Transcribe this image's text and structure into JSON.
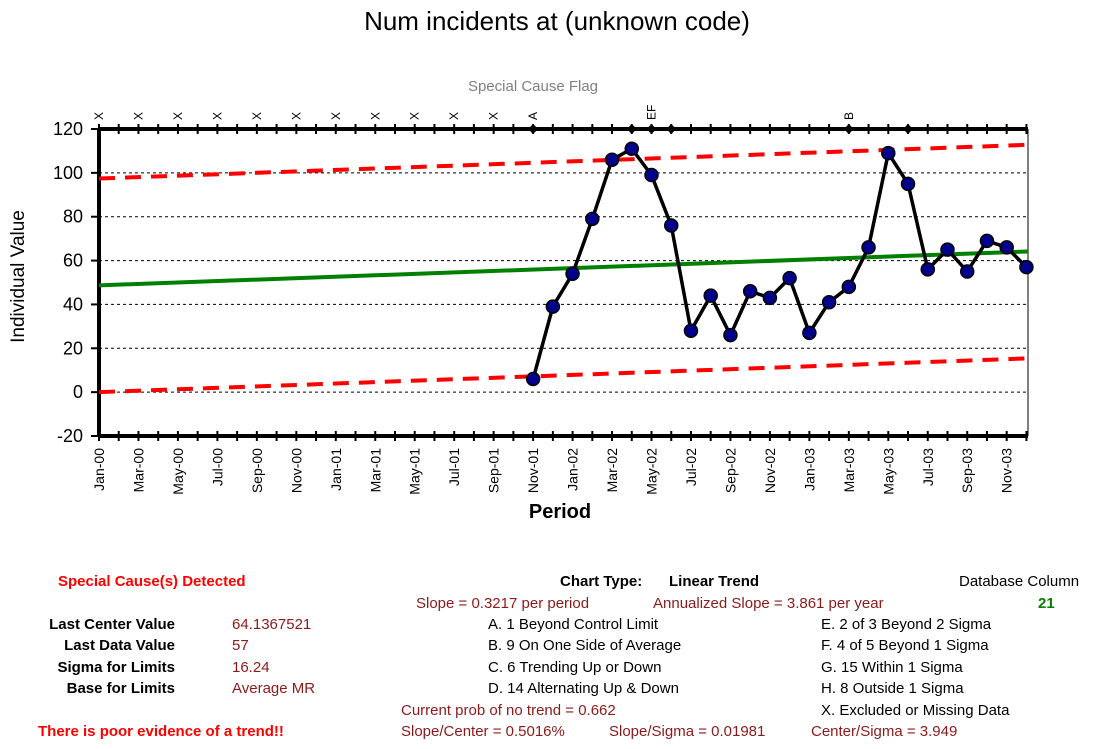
{
  "chart_data": {
    "type": "line",
    "title": "Num incidents at (unknown code)",
    "subtitle": "Special Cause Flag",
    "xlabel": "Period",
    "ylabel": "Individual Value",
    "ylim": [
      -20,
      120
    ],
    "yticks": [
      -20,
      0,
      20,
      40,
      60,
      80,
      100,
      120
    ],
    "grid": "horizontal dashed",
    "xtick_labels": [
      "Jan-00",
      "Mar-00",
      "May-00",
      "Jul-00",
      "Sep-00",
      "Nov-00",
      "Jan-01",
      "Mar-01",
      "May-01",
      "Jul-01",
      "Sep-01",
      "Nov-01",
      "Jan-02",
      "Mar-02",
      "May-02",
      "Jul-02",
      "Sep-02",
      "Nov-02",
      "Jan-03",
      "Mar-03",
      "May-03",
      "Jul-03",
      "Sep-03",
      "Nov-03"
    ],
    "n_periods": 48,
    "series": [
      {
        "start_index": 22,
        "values": [
          6,
          39,
          54,
          79,
          106,
          111,
          99,
          76,
          28,
          44,
          26,
          46,
          43,
          52,
          27,
          41,
          48,
          66,
          109,
          95,
          56,
          65,
          55,
          69,
          66,
          57
        ],
        "color": "#000000",
        "marker_color": "#00008b"
      }
    ],
    "center_line": {
      "start": 48.7,
      "end": 64.14,
      "color": "#008000"
    },
    "upper_limit": {
      "start": 97.4,
      "end": 112.8,
      "color": "#ff0000"
    },
    "lower_limit": {
      "start": 0.0,
      "end": 15.4,
      "color": "#ff0000"
    },
    "flags": [
      {
        "index": 0,
        "text": "X"
      },
      {
        "index": 2,
        "text": "X"
      },
      {
        "index": 4,
        "text": "X"
      },
      {
        "index": 6,
        "text": "X"
      },
      {
        "index": 8,
        "text": "X"
      },
      {
        "index": 10,
        "text": "X"
      },
      {
        "index": 12,
        "text": "X"
      },
      {
        "index": 14,
        "text": "X"
      },
      {
        "index": 16,
        "text": "X"
      },
      {
        "index": 18,
        "text": "X"
      },
      {
        "index": 20,
        "text": "X"
      },
      {
        "index": 22,
        "text": "A"
      },
      {
        "index": 28,
        "text": "EF"
      },
      {
        "index": 38,
        "text": "B"
      }
    ],
    "flag_diamonds": [
      22,
      27,
      28,
      29,
      38,
      41
    ]
  },
  "stats": {
    "special_cause": "Special Cause(s) Detected",
    "last_center_label": "Last Center Value",
    "last_center_value": "64.1367521",
    "last_data_label": "Last Data Value",
    "last_data_value": "57",
    "sigma_label": "Sigma for Limits",
    "sigma_value": "16.24",
    "base_label": "Base for Limits",
    "base_value": "Average MR",
    "trend_warning": "There is poor evidence of a trend!!"
  },
  "rules": {
    "chart_type_label": "Chart Type:",
    "chart_type_value": "Linear Trend",
    "slope": "Slope = 0.3217 per period",
    "annualized_slope": "Annualized Slope = 3.861 per year",
    "a": "A.  1 Beyond Control Limit",
    "b": "B.  9 On One Side of Average",
    "c": "C.  6 Trending Up or Down",
    "d": "D.  14 Alternating  Up & Down",
    "e": "E.  2 of 3 Beyond 2 Sigma",
    "f": "F.  4 of 5 Beyond 1 Sigma",
    "g": "G.  15 Within 1 Sigma",
    "h": "H.  8 Outside 1 Sigma",
    "x": "X.  Excluded or Missing Data",
    "prob_no_trend": "Current prob of no trend = 0.662",
    "slope_center": "Slope/Center = 0.5016%",
    "slope_sigma": "Slope/Sigma = 0.01981",
    "center_sigma": "Center/Sigma = 3.949"
  },
  "database": {
    "label": "Database Column",
    "value": "21"
  }
}
